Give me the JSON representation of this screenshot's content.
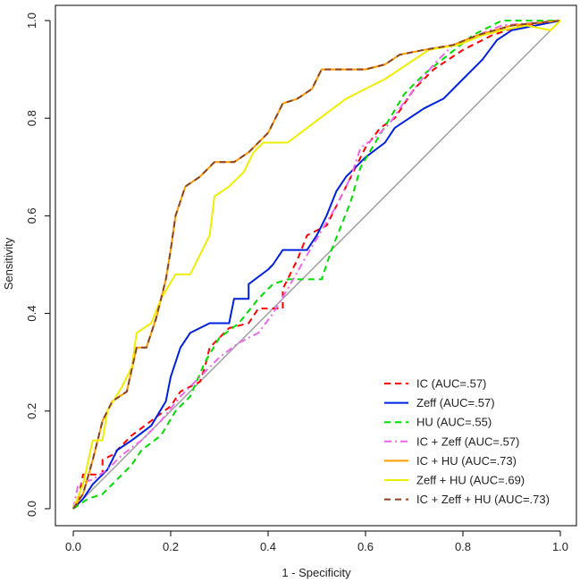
{
  "chart_data": {
    "type": "line",
    "title": "",
    "xlabel": "1 - Specificity",
    "ylabel": "Sensitivity",
    "xlim": [
      0,
      1
    ],
    "ylim": [
      0,
      1
    ],
    "x_ticks": [
      "0.0",
      "0.2",
      "0.4",
      "0.6",
      "0.8",
      "1.0"
    ],
    "y_ticks": [
      "0.0",
      "0.2",
      "0.4",
      "0.6",
      "0.8",
      "1.0"
    ],
    "grid": false,
    "legend_position": "bottom-right",
    "reference_line": {
      "from": [
        0,
        0
      ],
      "to": [
        1,
        1
      ],
      "color": "#a0a0a0"
    },
    "series": [
      {
        "name": "IC (AUC=.57)",
        "color": "#ff0000",
        "dash": "dashed",
        "points": [
          [
            0,
            0
          ],
          [
            0.01,
            0.02
          ],
          [
            0.02,
            0.07
          ],
          [
            0.06,
            0.07
          ],
          [
            0.06,
            0.1
          ],
          [
            0.08,
            0.11
          ],
          [
            0.1,
            0.13
          ],
          [
            0.12,
            0.15
          ],
          [
            0.16,
            0.18
          ],
          [
            0.2,
            0.21
          ],
          [
            0.22,
            0.24
          ],
          [
            0.26,
            0.26
          ],
          [
            0.27,
            0.29
          ],
          [
            0.28,
            0.33
          ],
          [
            0.32,
            0.37
          ],
          [
            0.36,
            0.38
          ],
          [
            0.38,
            0.41
          ],
          [
            0.43,
            0.41
          ],
          [
            0.43,
            0.45
          ],
          [
            0.46,
            0.51
          ],
          [
            0.48,
            0.56
          ],
          [
            0.52,
            0.58
          ],
          [
            0.55,
            0.64
          ],
          [
            0.58,
            0.7
          ],
          [
            0.6,
            0.74
          ],
          [
            0.63,
            0.78
          ],
          [
            0.66,
            0.8
          ],
          [
            0.7,
            0.86
          ],
          [
            0.74,
            0.9
          ],
          [
            0.8,
            0.94
          ],
          [
            0.86,
            0.97
          ],
          [
            0.92,
            0.99
          ],
          [
            1,
            1
          ]
        ]
      },
      {
        "name": "Zeff (AUC=.57)",
        "color": "#0020e0",
        "dash": "solid",
        "points": [
          [
            0,
            0
          ],
          [
            0.02,
            0.02
          ],
          [
            0.04,
            0.05
          ],
          [
            0.07,
            0.08
          ],
          [
            0.09,
            0.12
          ],
          [
            0.12,
            0.14
          ],
          [
            0.16,
            0.17
          ],
          [
            0.19,
            0.22
          ],
          [
            0.2,
            0.27
          ],
          [
            0.22,
            0.33
          ],
          [
            0.24,
            0.36
          ],
          [
            0.28,
            0.38
          ],
          [
            0.32,
            0.38
          ],
          [
            0.33,
            0.43
          ],
          [
            0.36,
            0.43
          ],
          [
            0.36,
            0.46
          ],
          [
            0.4,
            0.49
          ],
          [
            0.41,
            0.5
          ],
          [
            0.43,
            0.53
          ],
          [
            0.48,
            0.53
          ],
          [
            0.5,
            0.56
          ],
          [
            0.52,
            0.6
          ],
          [
            0.54,
            0.65
          ],
          [
            0.56,
            0.68
          ],
          [
            0.58,
            0.7
          ],
          [
            0.6,
            0.72
          ],
          [
            0.64,
            0.75
          ],
          [
            0.66,
            0.78
          ],
          [
            0.69,
            0.8
          ],
          [
            0.72,
            0.82
          ],
          [
            0.76,
            0.84
          ],
          [
            0.8,
            0.88
          ],
          [
            0.84,
            0.92
          ],
          [
            0.87,
            0.96
          ],
          [
            0.9,
            0.98
          ],
          [
            1,
            1
          ]
        ]
      },
      {
        "name": "HU (AUC=.55)",
        "color": "#00dd00",
        "dash": "dashed",
        "points": [
          [
            0,
            0
          ],
          [
            0.03,
            0.02
          ],
          [
            0.06,
            0.03
          ],
          [
            0.09,
            0.06
          ],
          [
            0.12,
            0.09
          ],
          [
            0.14,
            0.12
          ],
          [
            0.18,
            0.15
          ],
          [
            0.21,
            0.2
          ],
          [
            0.24,
            0.23
          ],
          [
            0.27,
            0.3
          ],
          [
            0.3,
            0.35
          ],
          [
            0.34,
            0.38
          ],
          [
            0.38,
            0.43
          ],
          [
            0.41,
            0.46
          ],
          [
            0.44,
            0.47
          ],
          [
            0.51,
            0.47
          ],
          [
            0.53,
            0.53
          ],
          [
            0.55,
            0.58
          ],
          [
            0.57,
            0.63
          ],
          [
            0.59,
            0.7
          ],
          [
            0.62,
            0.75
          ],
          [
            0.65,
            0.8
          ],
          [
            0.68,
            0.85
          ],
          [
            0.72,
            0.89
          ],
          [
            0.77,
            0.93
          ],
          [
            0.82,
            0.97
          ],
          [
            0.88,
            1.0
          ],
          [
            0.97,
            1.0
          ],
          [
            1,
            1
          ]
        ]
      },
      {
        "name": "IC + Zeff (AUC=.57)",
        "color": "#ee66ee",
        "dash": "dashdot",
        "points": [
          [
            0,
            0
          ],
          [
            0.01,
            0.05
          ],
          [
            0.04,
            0.06
          ],
          [
            0.07,
            0.08
          ],
          [
            0.1,
            0.11
          ],
          [
            0.14,
            0.14
          ],
          [
            0.18,
            0.18
          ],
          [
            0.22,
            0.23
          ],
          [
            0.26,
            0.27
          ],
          [
            0.3,
            0.31
          ],
          [
            0.34,
            0.34
          ],
          [
            0.38,
            0.36
          ],
          [
            0.41,
            0.4
          ],
          [
            0.44,
            0.45
          ],
          [
            0.48,
            0.52
          ],
          [
            0.51,
            0.57
          ],
          [
            0.54,
            0.62
          ],
          [
            0.57,
            0.68
          ],
          [
            0.59,
            0.74
          ],
          [
            0.62,
            0.76
          ],
          [
            0.65,
            0.79
          ],
          [
            0.67,
            0.82
          ],
          [
            0.7,
            0.86
          ],
          [
            0.74,
            0.91
          ],
          [
            0.78,
            0.95
          ],
          [
            0.83,
            0.97
          ],
          [
            0.88,
            0.99
          ],
          [
            1,
            1
          ]
        ]
      },
      {
        "name": "IC + HU (AUC=.73)",
        "color": "#ff9900",
        "dash": "solid",
        "points": [
          [
            0,
            0
          ],
          [
            0.02,
            0.03
          ],
          [
            0.04,
            0.1
          ],
          [
            0.06,
            0.18
          ],
          [
            0.08,
            0.22
          ],
          [
            0.11,
            0.24
          ],
          [
            0.13,
            0.33
          ],
          [
            0.15,
            0.33
          ],
          [
            0.17,
            0.39
          ],
          [
            0.19,
            0.47
          ],
          [
            0.2,
            0.53
          ],
          [
            0.21,
            0.6
          ],
          [
            0.23,
            0.66
          ],
          [
            0.26,
            0.68
          ],
          [
            0.29,
            0.71
          ],
          [
            0.33,
            0.71
          ],
          [
            0.36,
            0.73
          ],
          [
            0.4,
            0.77
          ],
          [
            0.43,
            0.83
          ],
          [
            0.46,
            0.84
          ],
          [
            0.49,
            0.86
          ],
          [
            0.51,
            0.9
          ],
          [
            0.6,
            0.9
          ],
          [
            0.64,
            0.91
          ],
          [
            0.67,
            0.93
          ],
          [
            0.72,
            0.94
          ],
          [
            0.78,
            0.95
          ],
          [
            0.83,
            0.97
          ],
          [
            0.9,
            0.99
          ],
          [
            1,
            1
          ]
        ]
      },
      {
        "name": "Zeff + HU (AUC=.69)",
        "color": "#eeee00",
        "dash": "solid",
        "points": [
          [
            0,
            0
          ],
          [
            0.02,
            0.05
          ],
          [
            0.04,
            0.14
          ],
          [
            0.06,
            0.14
          ],
          [
            0.07,
            0.2
          ],
          [
            0.1,
            0.25
          ],
          [
            0.12,
            0.29
          ],
          [
            0.13,
            0.36
          ],
          [
            0.16,
            0.38
          ],
          [
            0.18,
            0.43
          ],
          [
            0.21,
            0.48
          ],
          [
            0.24,
            0.48
          ],
          [
            0.26,
            0.52
          ],
          [
            0.28,
            0.56
          ],
          [
            0.29,
            0.64
          ],
          [
            0.32,
            0.66
          ],
          [
            0.35,
            0.69
          ],
          [
            0.37,
            0.73
          ],
          [
            0.39,
            0.75
          ],
          [
            0.44,
            0.75
          ],
          [
            0.48,
            0.78
          ],
          [
            0.52,
            0.81
          ],
          [
            0.56,
            0.84
          ],
          [
            0.6,
            0.86
          ],
          [
            0.64,
            0.88
          ],
          [
            0.67,
            0.9
          ],
          [
            0.73,
            0.94
          ],
          [
            0.79,
            0.95
          ],
          [
            0.84,
            0.97
          ],
          [
            0.88,
            0.98
          ],
          [
            0.93,
            0.99
          ],
          [
            0.98,
            0.98
          ],
          [
            1,
            1
          ]
        ]
      },
      {
        "name": "IC + Zeff + HU (AUC=.73)",
        "color": "#884422",
        "dash": "dashed",
        "points": [
          [
            0,
            0
          ],
          [
            0.02,
            0.03
          ],
          [
            0.04,
            0.1
          ],
          [
            0.06,
            0.18
          ],
          [
            0.08,
            0.22
          ],
          [
            0.11,
            0.24
          ],
          [
            0.13,
            0.33
          ],
          [
            0.15,
            0.33
          ],
          [
            0.17,
            0.39
          ],
          [
            0.19,
            0.47
          ],
          [
            0.2,
            0.53
          ],
          [
            0.21,
            0.6
          ],
          [
            0.23,
            0.66
          ],
          [
            0.26,
            0.68
          ],
          [
            0.29,
            0.71
          ],
          [
            0.33,
            0.71
          ],
          [
            0.36,
            0.73
          ],
          [
            0.4,
            0.77
          ],
          [
            0.43,
            0.83
          ],
          [
            0.46,
            0.84
          ],
          [
            0.49,
            0.86
          ],
          [
            0.51,
            0.9
          ],
          [
            0.6,
            0.9
          ],
          [
            0.64,
            0.91
          ],
          [
            0.67,
            0.93
          ],
          [
            0.72,
            0.94
          ],
          [
            0.78,
            0.95
          ],
          [
            0.83,
            0.97
          ],
          [
            0.9,
            0.99
          ],
          [
            1,
            1
          ]
        ]
      }
    ]
  }
}
